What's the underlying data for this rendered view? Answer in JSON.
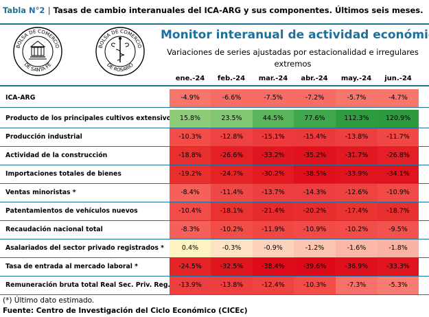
{
  "caption": {
    "number": "Tabla N°2",
    "separator": "|",
    "text": "Tasas de cambio interanuales del ICA-ARG y sus componentes. Últimos seis meses."
  },
  "seals": [
    {
      "name": "bolsa-comercio-santa-fe",
      "text_top": "BOLSA DE COMERCIO",
      "text_bottom": "DE SANTA FE"
    },
    {
      "name": "bolsa-comercio-rosario",
      "text_top": "BOLSA DE COMERCIO",
      "text_bottom": "DE ROSARIO"
    }
  ],
  "monitor": {
    "title": "Monitor interanual de actividad económica",
    "subtitle": "Variaciones de series ajustadas por estacionalidad e irregulares extremos"
  },
  "months": [
    "ene.-24",
    "feb.-24",
    "mar.-24",
    "abr.-24",
    "may.-24",
    "jun.-24"
  ],
  "rows": [
    {
      "label": "ICA-ARG",
      "values": [
        "-4.9%",
        "-6.6%",
        "-7.5%",
        "-7.2%",
        "-5.7%",
        "-4.7%"
      ],
      "colors": [
        "#f8756b",
        "#f86c66",
        "#f86c66",
        "#f86c66",
        "#f8756b",
        "#f8766c"
      ]
    },
    {
      "label": "Producto de los principales cultivos extensivos",
      "values": [
        "15.8%",
        "23.5%",
        "44.5%",
        "77.6%",
        "112.3%",
        "120.9%"
      ],
      "colors": [
        "#8fcc79",
        "#81c774",
        "#58b55c",
        "#3fa84c",
        "#2e9d3f",
        "#2c9b3d"
      ]
    },
    {
      "label": "Producción industrial",
      "values": [
        "-10.3%",
        "-12.8%",
        "-15.1%",
        "-15.4%",
        "-13.8%",
        "-11.7%"
      ],
      "colors": [
        "#f24d49",
        "#ef4343",
        "#ec3a3d",
        "#ec393c",
        "#ee3f40",
        "#f04845"
      ]
    },
    {
      "label": "Actividad de la construcción",
      "values": [
        "-18.8%",
        "-26.6%",
        "-33.2%",
        "-35.2%",
        "-31.7%",
        "-26.8%"
      ],
      "colors": [
        "#e9302f",
        "#e41f25",
        "#e01620",
        "#e0121e",
        "#e21922",
        "#e41f25"
      ]
    },
    {
      "label": "Importaciones totales de bienes",
      "values": [
        "-19.2%",
        "-24.7%",
        "-30.2%",
        "-38.5%",
        "-33.9%",
        "-34.1%"
      ],
      "colors": [
        "#e9302f",
        "#e52427",
        "#e21a22",
        "#df0f1c",
        "#e0141f",
        "#e0141f"
      ]
    },
    {
      "label": "Ventas minoristas *",
      "values": [
        "-8.4%",
        "-11.4%",
        "-13.7%",
        "-14.3%",
        "-12.6%",
        "-10.9%"
      ],
      "colors": [
        "#f5605a",
        "#f04845",
        "#ee3f40",
        "#ed3d3f",
        "#ef4342",
        "#f14a47"
      ]
    },
    {
      "label": "Patentamientos de vehículos nuevos",
      "values": [
        "-10.4%",
        "-18.1%",
        "-21.4%",
        "-20.2%",
        "-17.4%",
        "-18.7%"
      ],
      "colors": [
        "#f24c48",
        "#ea3331",
        "#e72a2b",
        "#e82d2d",
        "#ea3432",
        "#e93030"
      ]
    },
    {
      "label": "Recaudación nacional total",
      "values": [
        "-8.3%",
        "-10.2%",
        "-11.9%",
        "-10.9%",
        "-10.2%",
        "-9.5%"
      ],
      "colors": [
        "#f5605a",
        "#f24d49",
        "#f04644",
        "#f14a47",
        "#f24d49",
        "#f3534e"
      ]
    },
    {
      "label": "Asalariados del sector privado registrados *",
      "values": [
        "0.4%",
        "-0.3%",
        "-0.9%",
        "-1.2%",
        "-1.6%",
        "-1.8%"
      ],
      "colors": [
        "#fdf3c0",
        "#fde3c4",
        "#fcd2bb",
        "#fbc5b1",
        "#fbb8a7",
        "#fab3a3"
      ]
    },
    {
      "label": "Tasa de entrada al mercado laboral *",
      "values": [
        "-24.5%",
        "-32.5%",
        "-38.4%",
        "-39.6%",
        "-36.9%",
        "-33.3%"
      ],
      "colors": [
        "#e52427",
        "#e0161f",
        "#de0c1b",
        "#de0a1a",
        "#df0f1c",
        "#e0151f"
      ]
    },
    {
      "label": "Remuneración bruta total Real Sec. Priv. Reg.*",
      "values": [
        "-13.9%",
        "-13.8%",
        "-12.4%",
        "-10.3%",
        "-7.3%",
        "-5.3%"
      ],
      "colors": [
        "#ee3f40",
        "#ee3f40",
        "#ef4342",
        "#f24d49",
        "#f8706a",
        "#f87c72"
      ]
    }
  ],
  "note": "(*) Último dato estimado.",
  "source": "Fuente: Centro de Investigación del Ciclo Económico (CICEc)"
}
